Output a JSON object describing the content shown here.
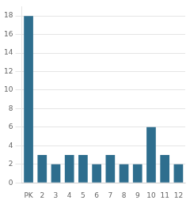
{
  "chart_data": {
    "type": "bar",
    "categories": [
      "PK",
      "2",
      "3",
      "4",
      "5",
      "6",
      "7",
      "8",
      "9",
      "10",
      "11",
      "12"
    ],
    "values": [
      18,
      3,
      2,
      3,
      3,
      2,
      3,
      2,
      2,
      6,
      3,
      2
    ],
    "color": "#2e6e8e",
    "ylim": [
      0,
      19
    ],
    "yticks": [
      0,
      2,
      4,
      6,
      8,
      10,
      12,
      14,
      16,
      18
    ],
    "grid": true
  }
}
